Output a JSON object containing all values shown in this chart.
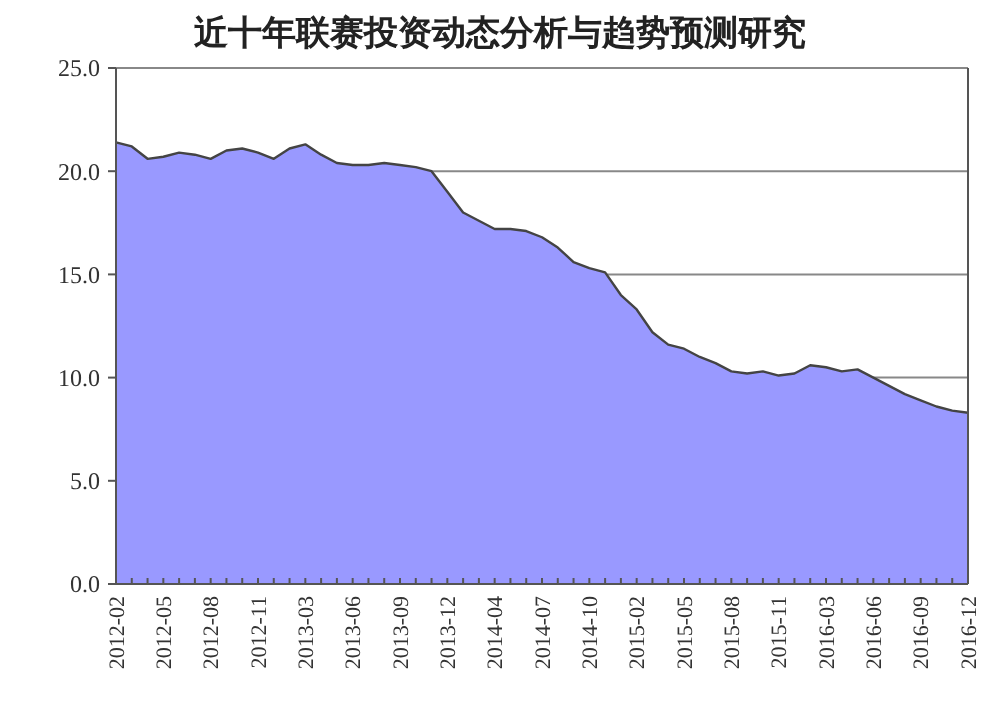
{
  "chart_data": {
    "type": "area",
    "title": "近十年联赛投资动态分析与趋势预测研究",
    "categories": [
      "2012-02",
      null,
      null,
      "2012-05",
      null,
      null,
      "2012-08",
      null,
      null,
      "2012-11",
      null,
      null,
      "2013-03",
      null,
      null,
      "2013-06",
      null,
      null,
      "2013-09",
      null,
      null,
      "2013-12",
      null,
      null,
      "2014-04",
      null,
      null,
      "2014-07",
      null,
      null,
      "2014-10",
      null,
      null,
      "2015-02",
      null,
      null,
      "2015-05",
      null,
      null,
      "2015-08",
      null,
      null,
      "2015-11",
      null,
      null,
      "2016-03",
      null,
      null,
      "2016-06",
      null,
      null,
      "2016-09",
      null,
      null,
      "2016-12"
    ],
    "series": [
      {
        "color": "#9999ff",
        "values": [
          21.4,
          21.2,
          20.6,
          20.7,
          20.9,
          20.8,
          20.6,
          21.0,
          21.1,
          20.9,
          20.6,
          21.1,
          21.3,
          20.8,
          20.4,
          20.3,
          20.3,
          20.4,
          20.3,
          20.2,
          20.0,
          19.0,
          18.0,
          17.6,
          17.2,
          17.2,
          17.1,
          16.8,
          16.3,
          15.6,
          15.3,
          15.1,
          14.0,
          13.3,
          12.2,
          11.6,
          11.4,
          11.0,
          10.7,
          10.3,
          10.2,
          10.3,
          10.1,
          10.2,
          10.6,
          10.5,
          10.3,
          10.4,
          10.0,
          9.6,
          9.2,
          8.9,
          8.6,
          8.4,
          8.3
        ]
      }
    ],
    "ylim": [
      0,
      25
    ],
    "yticks": [
      {
        "value": 0,
        "label": "0.0"
      },
      {
        "value": 5,
        "label": "5.0"
      },
      {
        "value": 10,
        "label": "10.0"
      },
      {
        "value": 15,
        "label": "15.0"
      },
      {
        "value": 20,
        "label": "20.0"
      },
      {
        "value": 25,
        "label": "25.0"
      }
    ],
    "grid": "y"
  }
}
